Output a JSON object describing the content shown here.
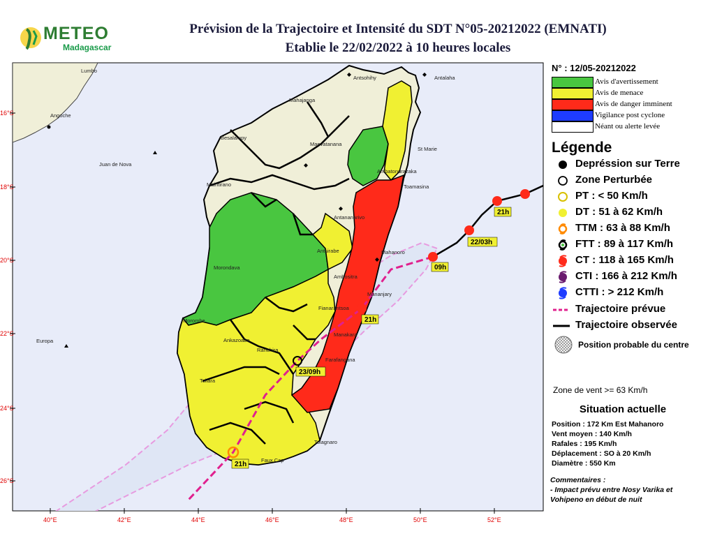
{
  "logo": {
    "name": "METEO",
    "subname": "Madagascar"
  },
  "title": {
    "line1": "Prévision de la Trajectoire et Intensité du SDT N°05-20212022 (EMNATI)",
    "line2": "Etablie le 22/02/2022 à 10 heures locales"
  },
  "map": {
    "lat_ticks": [
      "16°S",
      "18°S",
      "20°S",
      "22°S",
      "24°S",
      "26°S"
    ],
    "lon_ticks": [
      "40°E",
      "42°E",
      "44°E",
      "46°E",
      "48°E",
      "50°E",
      "52°E"
    ],
    "places": [
      "Lumbo",
      "Angoche",
      "Juan de Nova",
      "Europa",
      "Antsohihy",
      "Antalaha",
      "Mahajanga",
      "Besalampy",
      "Maevatanana",
      "Maintirano",
      "Ambatondrazaka",
      "Toamasina",
      "St Marie",
      "Antananarivo",
      "Antsirabe",
      "Mahanoro",
      "Morondava",
      "Ambositra",
      "Mananjary",
      "Fianarantsoa",
      "Manakara",
      "Farafangana",
      "Morombe",
      "Ankazoabo",
      "Ranohira",
      "Toliara",
      "Tolagnaro",
      "Faux Cap"
    ],
    "track_labels": [
      "21h",
      "22/03h",
      "09h",
      "21h",
      "23/09h",
      "21h"
    ],
    "colors": {
      "ocean": "#e8ecf9",
      "avertissement": "#49c640",
      "menace": "#f0f032",
      "danger": "#ff2a1a",
      "post_cyclone": "#1e3cff",
      "neant": "#f0efd8",
      "forecast_track": "#e0208e",
      "observed_track": "#000000",
      "cone": "#e79be0"
    }
  },
  "panel": {
    "number": "N° : 12/05-20212022",
    "alerts": [
      {
        "label": "Avis d'avertissement",
        "color": "#49c640"
      },
      {
        "label": "Avis de menace",
        "color": "#f0f032"
      },
      {
        "label": "Avis de danger imminent",
        "color": "#ff2a1a"
      },
      {
        "label": "Vigilance post cyclone",
        "color": "#1e3cff"
      },
      {
        "label": "Néant ou alerte levée",
        "color": "#ffffff"
      }
    ],
    "legend_title": "Légende",
    "legend": [
      {
        "label": "Depréssion sur Terre",
        "icon": "filled-black-circle"
      },
      {
        "label": "Zone Perturbée",
        "icon": "open-circle"
      },
      {
        "label": "PT : < 50 Km/h",
        "icon": "yellow-open-circle"
      },
      {
        "label": "DT : 51 à 62 Km/h",
        "icon": "yellow-dot"
      },
      {
        "label": "TTM : 63 à 88 Km/h",
        "icon": "orange-cyclone-symbol"
      },
      {
        "label": "FTT : 89 à 117 Km/h",
        "icon": "black-cyclone-symbol"
      },
      {
        "label": "CT : 118 à 165 Km/h",
        "icon": "red-cyclone-symbol"
      },
      {
        "label": "CTI : 166 à 212 Km/h",
        "icon": "purple-cyclone-symbol"
      },
      {
        "label": "CTTI : > 212 Km/h",
        "icon": "blue-cyclone-symbol"
      },
      {
        "label": "Trajectoire prévue",
        "icon": "dashed-magenta-line"
      },
      {
        "label": "Trajectoire observée",
        "icon": "solid-black-line"
      },
      {
        "label": "Position probable du centre",
        "icon": "hatched-circle"
      }
    ],
    "wind_zone": "Zone de vent >= 63 Km/h",
    "situation_title": "Situation actuelle",
    "situation": [
      "Position : 172 Km Est Mahanoro",
      "Vent moyen : 140 Km/h",
      "Rafales : 195 Km/h",
      "Déplacement : SO à 20 Km/h",
      "Diamètre : 550 Km"
    ],
    "comments_title": "Commentaires :",
    "comments": [
      "- Impact prévu entre Nosy Varika et",
      "Vohipeno en début de nuit"
    ]
  }
}
